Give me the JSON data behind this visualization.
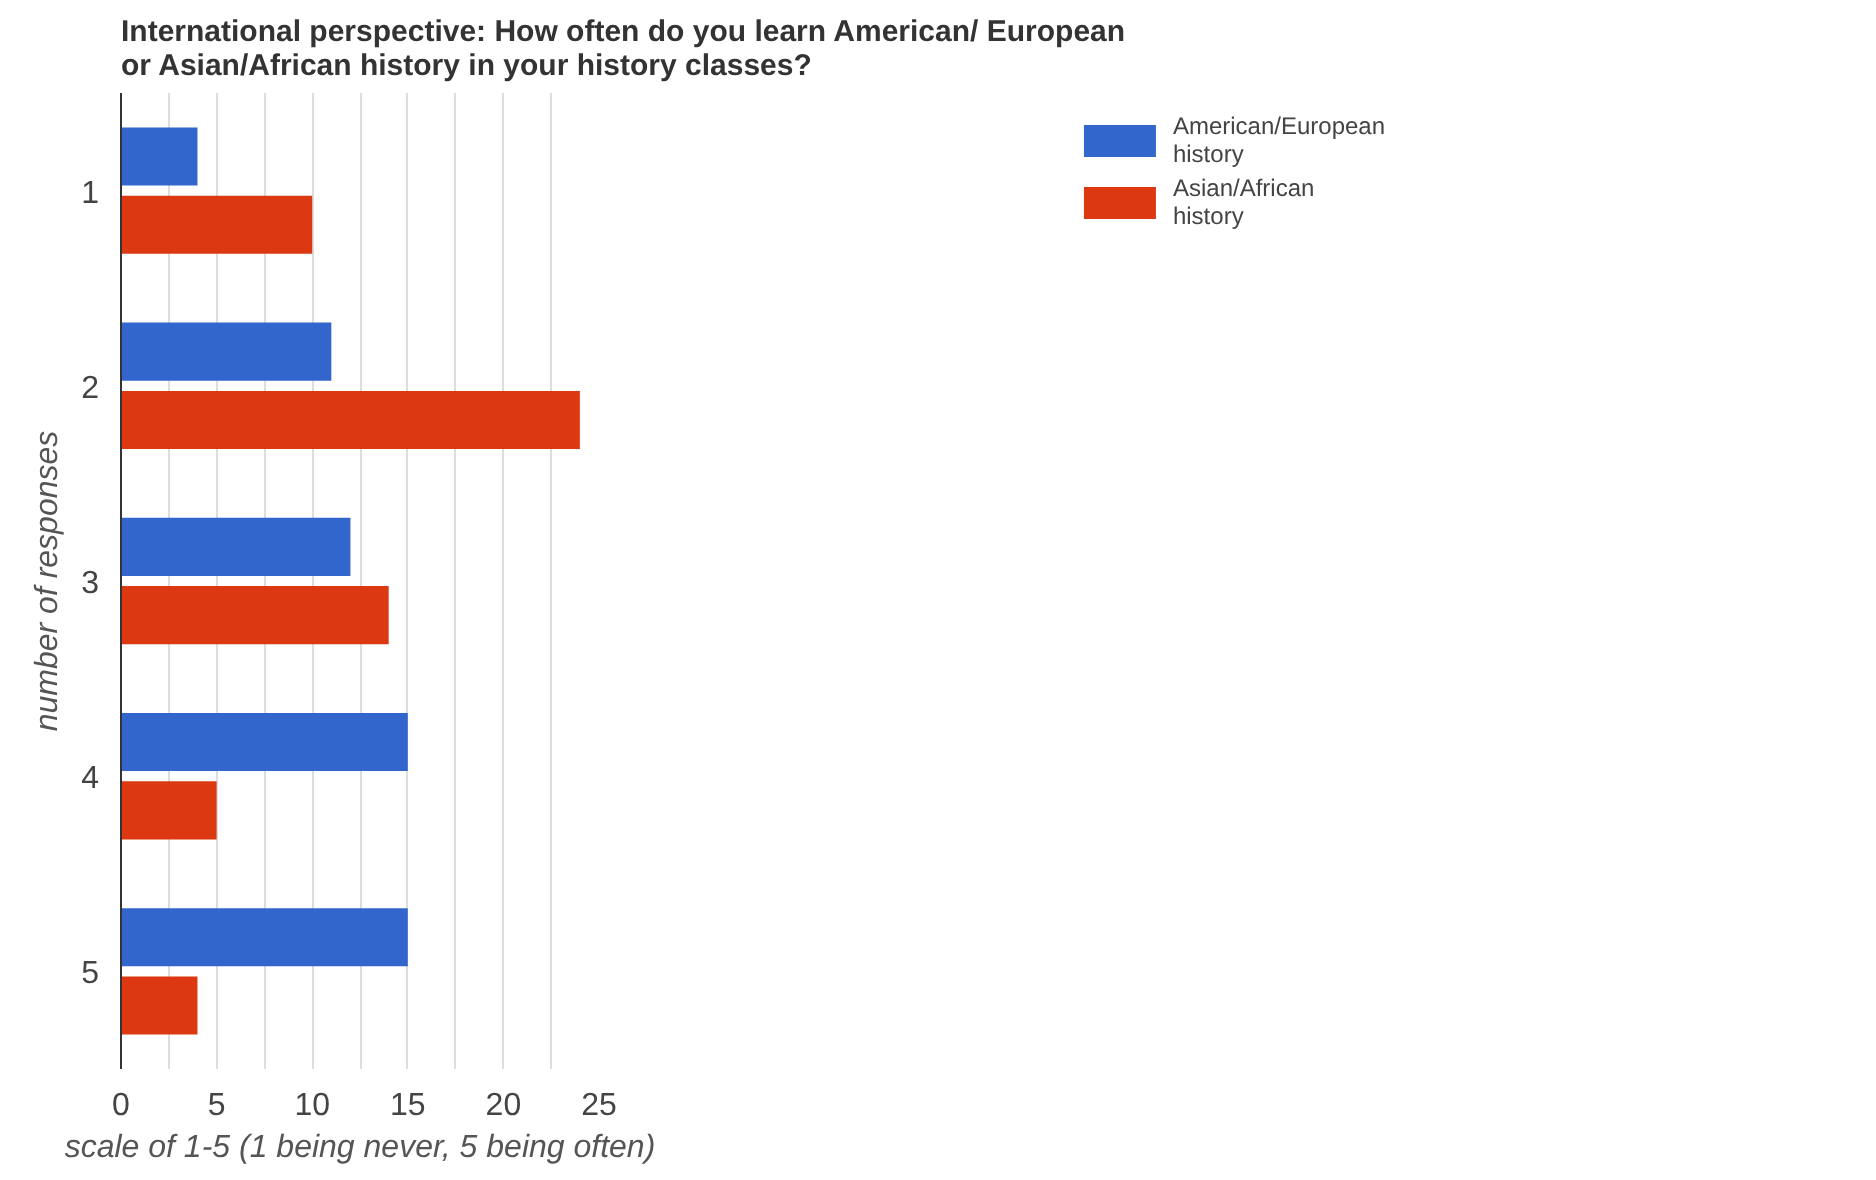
{
  "chart_data": {
    "type": "bar",
    "orientation": "horizontal",
    "title": "International perspective: How often do you learn American/ European or Asian/African history in your history classes?",
    "xlabel": "scale of 1-5 (1 being never, 5 being often)",
    "ylabel": "number of responses",
    "categories": [
      "1",
      "2",
      "3",
      "4",
      "5"
    ],
    "series": [
      {
        "name": "American/European history",
        "color": "#3366cc",
        "values": [
          4,
          11,
          12,
          15,
          15
        ]
      },
      {
        "name": "Asian/African history",
        "color": "#dc3912",
        "values": [
          10,
          24,
          14,
          5,
          4
        ]
      }
    ],
    "xlim": [
      0,
      25
    ],
    "xticks": [
      0,
      {
        "value": 2.5,
        "label": null
      },
      5,
      {
        "value": 7.5,
        "label": null
      },
      10,
      {
        "value": 12.5,
        "label": null
      },
      15,
      {
        "value": 17.5,
        "label": null
      },
      20,
      {
        "value": 22.5,
        "label": null
      },
      25
    ],
    "grid": "x",
    "legend": "top right"
  }
}
